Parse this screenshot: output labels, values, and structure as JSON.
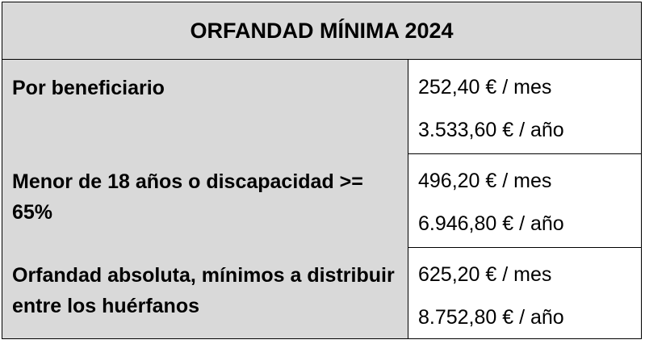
{
  "title": "ORFANDAD MÍNIMA 2024",
  "table": {
    "rows": [
      [
        "Por beneficiario",
        "252,40 € / mes",
        "3.533,60 € / año"
      ],
      [
        "Menor de 18 años o discapacidad >= 65%",
        "496,20 € / mes",
        "6.946,80 € / año"
      ],
      [
        "Orfandad absoluta, mínimos a distribuir entre los huérfanos",
        "625,20 € / mes",
        "8.752,80 € / año"
      ]
    ]
  }
}
